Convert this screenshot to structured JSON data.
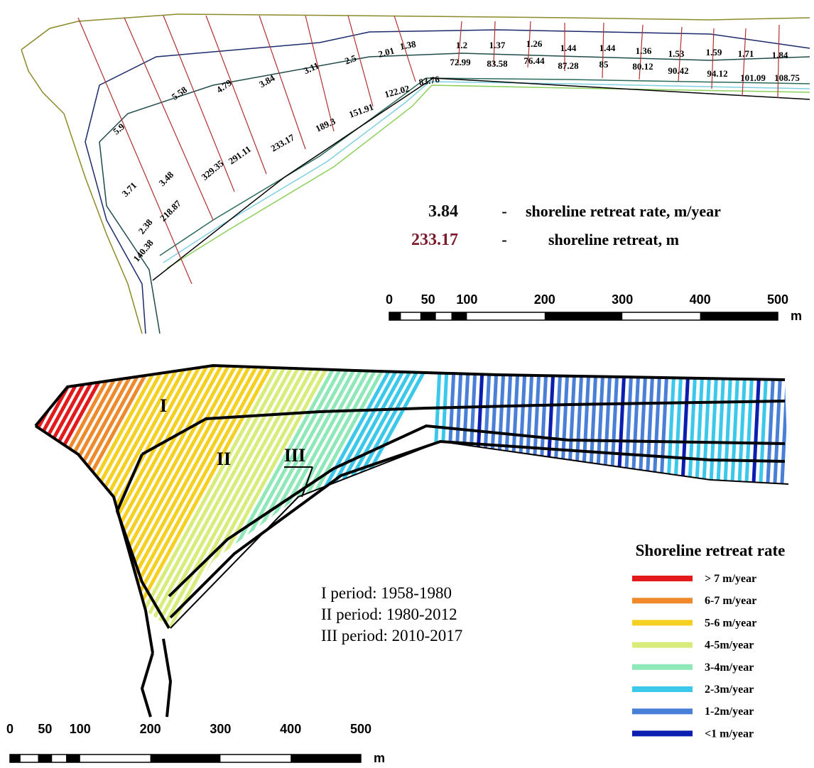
{
  "top_map": {
    "rate_labels": [
      "5.9",
      "5.58",
      "4.79",
      "3.84",
      "3.11",
      "2.5",
      "2.01",
      "1.38",
      "1.2",
      "1.37",
      "1.26",
      "1.44",
      "1.44",
      "1.36",
      "1.53",
      "1.59",
      "1.71",
      "1.84",
      "3.71",
      "3.48",
      "2.38"
    ],
    "retreat_labels": [
      "140.38",
      "218.87",
      "329.35",
      "291.11",
      "233.17",
      "189.3",
      "151.91",
      "122.02",
      "83.76",
      "72.99",
      "83.58",
      "76.44",
      "87.28",
      "85",
      "80.12",
      "90.42",
      "94.12",
      "101.09",
      "108.75"
    ],
    "legend": [
      {
        "value": "3.84",
        "dash": "-",
        "text": "shoreline retreat rate, m/year"
      },
      {
        "value": "233.17",
        "dash": "-",
        "text": "shoreline retreat, m"
      }
    ],
    "scale": {
      "ticks": [
        "0",
        "50",
        "100",
        "200",
        "300",
        "400",
        "500"
      ],
      "unit": "m"
    }
  },
  "bottom_map": {
    "zone_labels": [
      "I",
      "II",
      "III"
    ],
    "periods": [
      "I period: 1958-1980",
      "II period: 1980-2012",
      "III period: 2010-2017"
    ],
    "legend": {
      "title": "Shoreline retreat rate",
      "items": [
        {
          "label": "> 7 m/year",
          "color": "#e31a1c"
        },
        {
          "label": "6-7 m/year",
          "color": "#ef8a2c"
        },
        {
          "label": "5-6 m/year",
          "color": "#f5d020"
        },
        {
          "label": "4-5m/year",
          "color": "#d7ec7a"
        },
        {
          "label": "3-4m/year",
          "color": "#8fe8b8"
        },
        {
          "label": "2-3m/year",
          "color": "#3cc8ea"
        },
        {
          "label": "1-2m/year",
          "color": "#4a7fd8"
        },
        {
          "label": "<1 m/year",
          "color": "#0a1fb0"
        }
      ]
    },
    "scale": {
      "ticks": [
        "0",
        "50",
        "100",
        "200",
        "300",
        "400",
        "500"
      ],
      "unit": "m"
    }
  }
}
